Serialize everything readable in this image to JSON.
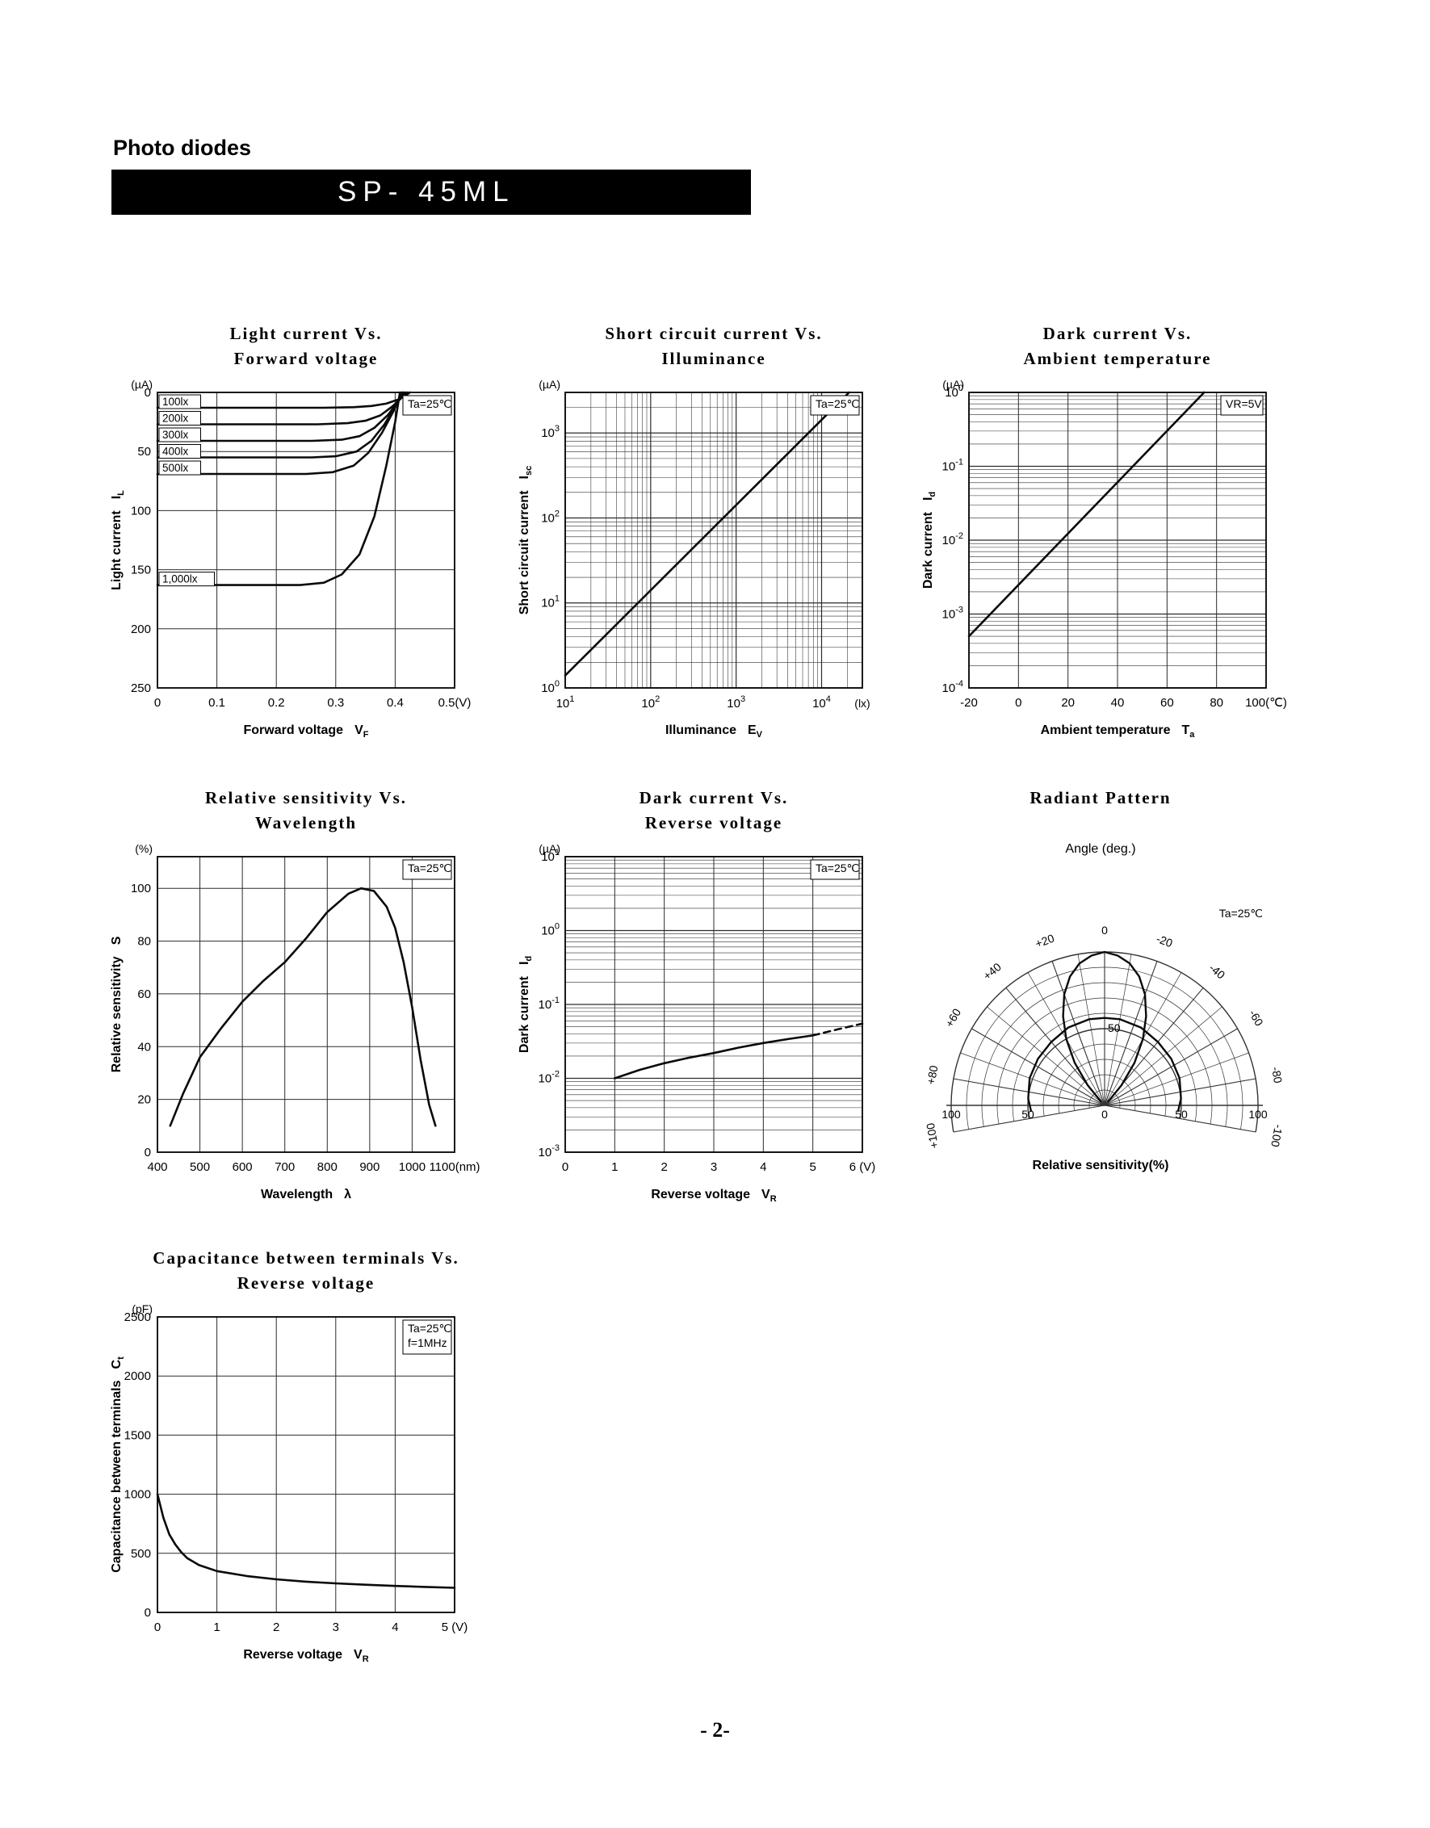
{
  "page": {
    "section_label": "Photo diodes",
    "part_number": "SP- 45ML",
    "footer": "- 2-"
  },
  "chart_data": [
    {
      "id": "light-current-vs-forward-voltage",
      "type": "line",
      "render": "xy",
      "title_lines": [
        "Light current Vs.",
        "Forward voltage"
      ],
      "annotations": [
        {
          "lines": [
            "Ta=25℃"
          ],
          "box": true
        }
      ],
      "x": {
        "label": "Forward voltage",
        "sym": "V",
        "sub": "F",
        "scale": "linear",
        "min": 0,
        "max": 0.5,
        "ticks": [
          0,
          0.1,
          0.2,
          0.3,
          0.4,
          0.5
        ],
        "tick_labels": [
          "0",
          "0.1",
          "0.2",
          "0.3",
          "0.4",
          "0.5(V)"
        ]
      },
      "y": {
        "label": "Light current",
        "sym": "I",
        "sub": "L",
        "unit": "(µA)",
        "scale": "linear",
        "min": 0,
        "max": 250,
        "inverted": true,
        "ticks": [
          0,
          50,
          100,
          150,
          200,
          250
        ],
        "tick_labels": [
          "0",
          "50",
          "100",
          "150",
          "200",
          "250"
        ]
      },
      "series": [
        {
          "name": "100lx",
          "label_box": true,
          "level": 13,
          "points": [
            [
              0,
              13
            ],
            [
              0.28,
              13
            ],
            [
              0.33,
              12.5
            ],
            [
              0.36,
              11.5
            ],
            [
              0.385,
              9.5
            ],
            [
              0.405,
              6
            ],
            [
              0.418,
              2.5
            ],
            [
              0.425,
              0
            ]
          ]
        },
        {
          "name": "200lx",
          "label_box": true,
          "level": 27,
          "points": [
            [
              0,
              27
            ],
            [
              0.27,
              27
            ],
            [
              0.32,
              26
            ],
            [
              0.35,
              24
            ],
            [
              0.375,
              19.5
            ],
            [
              0.395,
              12
            ],
            [
              0.412,
              4
            ],
            [
              0.421,
              0
            ]
          ]
        },
        {
          "name": "300lx",
          "label_box": true,
          "level": 41,
          "points": [
            [
              0,
              41
            ],
            [
              0.26,
              41
            ],
            [
              0.31,
              40
            ],
            [
              0.34,
              37
            ],
            [
              0.365,
              30
            ],
            [
              0.388,
              19
            ],
            [
              0.406,
              7
            ],
            [
              0.417,
              0
            ]
          ]
        },
        {
          "name": "400lx",
          "label_box": true,
          "level": 55,
          "points": [
            [
              0,
              55
            ],
            [
              0.26,
              55
            ],
            [
              0.3,
              54
            ],
            [
              0.335,
              50
            ],
            [
              0.36,
              41
            ],
            [
              0.382,
              27
            ],
            [
              0.401,
              11
            ],
            [
              0.414,
              0
            ]
          ]
        },
        {
          "name": "500lx",
          "label_box": true,
          "level": 69,
          "points": [
            [
              0,
              69
            ],
            [
              0.25,
              69
            ],
            [
              0.295,
              67.5
            ],
            [
              0.33,
              62
            ],
            [
              0.355,
              51
            ],
            [
              0.378,
              34
            ],
            [
              0.398,
              15
            ],
            [
              0.411,
              0
            ]
          ]
        },
        {
          "name": "1,000lx",
          "label_box": true,
          "level": 163,
          "points": [
            [
              0,
              163
            ],
            [
              0.24,
              163
            ],
            [
              0.28,
              161
            ],
            [
              0.31,
              154
            ],
            [
              0.34,
              137
            ],
            [
              0.365,
              105
            ],
            [
              0.385,
              62
            ],
            [
              0.4,
              25
            ],
            [
              0.408,
              0
            ]
          ]
        }
      ]
    },
    {
      "id": "short-circuit-current-vs-illuminance",
      "type": "line",
      "render": "xy",
      "title_lines": [
        "Short circuit current Vs.",
        "Illuminance"
      ],
      "annotations": [
        {
          "lines": [
            "Ta=25℃"
          ],
          "box": true
        }
      ],
      "x": {
        "label": "Illuminance",
        "sym": "E",
        "sub": "V",
        "scale": "log",
        "min": 10,
        "max": 30000,
        "end_label": "(lx)"
      },
      "y": {
        "label": "Short circuit current",
        "sym": "I",
        "sub": "sc",
        "unit": "(µA)",
        "scale": "log",
        "min": 1,
        "max": 3000
      },
      "series": [
        {
          "name": "Isc",
          "points": [
            [
              10,
              1.4
            ],
            [
              21000,
              3000
            ]
          ]
        }
      ]
    },
    {
      "id": "dark-current-vs-ambient-temperature",
      "type": "line",
      "render": "xy",
      "title_lines": [
        "Dark current Vs.",
        "Ambient temperature"
      ],
      "annotations": [
        {
          "lines": [
            "VR=5V"
          ],
          "box": true
        }
      ],
      "x": {
        "label": "Ambient temperature",
        "sym": "T",
        "sub": "a",
        "scale": "linear",
        "min": -20,
        "max": 100,
        "ticks": [
          -20,
          0,
          20,
          40,
          60,
          80,
          100
        ],
        "tick_labels": [
          "-20",
          "0",
          "20",
          "40",
          "60",
          "80",
          "100(℃)"
        ]
      },
      "y": {
        "label": "Dark current",
        "sym": "I",
        "sub": "d",
        "unit": "(µA)",
        "scale": "log",
        "min": 0.0001,
        "max": 1
      },
      "series": [
        {
          "name": "Id",
          "points": [
            [
              -20,
              0.0005
            ],
            [
              75,
              1.0
            ]
          ]
        }
      ]
    },
    {
      "id": "relative-sensitivity-vs-wavelength",
      "type": "line",
      "render": "xy",
      "title_lines": [
        "Relative sensitivity Vs.",
        "Wavelength"
      ],
      "annotations": [
        {
          "lines": [
            "Ta=25℃"
          ],
          "box": true
        }
      ],
      "x": {
        "label": "Wavelength",
        "sym": "λ",
        "sub": "",
        "scale": "linear",
        "min": 400,
        "max": 1100,
        "ticks": [
          400,
          500,
          600,
          700,
          800,
          900,
          1000,
          1100
        ],
        "tick_labels": [
          "400",
          "500",
          "600",
          "700",
          "800",
          "900",
          "1000",
          "1100(nm)"
        ]
      },
      "y": {
        "label": "Relative sensitivity",
        "sym": "S",
        "sub": "",
        "unit": "(%)",
        "scale": "linear",
        "min": 0,
        "max": 112,
        "ticks": [
          0,
          20,
          40,
          60,
          80,
          100
        ],
        "tick_labels": [
          "0",
          "20",
          "40",
          "60",
          "80",
          "100"
        ]
      },
      "series": [
        {
          "name": "S",
          "points": [
            [
              430,
              10
            ],
            [
              460,
              22
            ],
            [
              500,
              36
            ],
            [
              550,
              47
            ],
            [
              600,
              57
            ],
            [
              650,
              65
            ],
            [
              700,
              72
            ],
            [
              750,
              81
            ],
            [
              800,
              91
            ],
            [
              850,
              98
            ],
            [
              880,
              100
            ],
            [
              910,
              99
            ],
            [
              940,
              93
            ],
            [
              960,
              85
            ],
            [
              980,
              72
            ],
            [
              1000,
              55
            ],
            [
              1020,
              35
            ],
            [
              1040,
              18
            ],
            [
              1055,
              10
            ]
          ]
        }
      ]
    },
    {
      "id": "dark-current-vs-reverse-voltage",
      "type": "line",
      "render": "xy",
      "title_lines": [
        "Dark current Vs.",
        "Reverse voltage"
      ],
      "annotations": [
        {
          "lines": [
            "Ta=25℃"
          ],
          "box": true
        }
      ],
      "x": {
        "label": "Reverse voltage",
        "sym": "V",
        "sub": "R",
        "scale": "linear",
        "min": 0,
        "max": 6,
        "ticks": [
          0,
          1,
          2,
          3,
          4,
          5,
          6
        ],
        "tick_labels": [
          "0",
          "1",
          "2",
          "3",
          "4",
          "5",
          "6 (V)"
        ]
      },
      "y": {
        "label": "Dark current",
        "sym": "I",
        "sub": "d",
        "unit": "(µA)",
        "scale": "log",
        "min": 0.001,
        "max": 10
      },
      "series": [
        {
          "name": "Id",
          "points": [
            [
              1,
              0.01
            ],
            [
              1.5,
              0.013
            ],
            [
              2,
              0.016
            ],
            [
              2.5,
              0.019
            ],
            [
              3,
              0.022
            ],
            [
              3.5,
              0.026
            ],
            [
              4,
              0.03
            ],
            [
              4.5,
              0.034
            ],
            [
              5,
              0.038
            ]
          ]
        },
        {
          "name": "Id-extrapolated",
          "dash": true,
          "points": [
            [
              5,
              0.038
            ],
            [
              5.5,
              0.046
            ],
            [
              6,
              0.055
            ]
          ]
        }
      ]
    },
    {
      "id": "radiant-pattern",
      "type": "line",
      "render": "polar",
      "title_lines": [
        "Radiant Pattern"
      ],
      "top_label": "Angle (deg.)",
      "bottom_label": "Relative sensitivity(%)",
      "annotation": "Ta=25℃",
      "angle_labels": [
        {
          "a": 0,
          "t": "0"
        },
        {
          "a": -20,
          "t": "-20"
        },
        {
          "a": -40,
          "t": "-40"
        },
        {
          "a": -60,
          "t": "-60"
        },
        {
          "a": -80,
          "t": "-80"
        },
        {
          "a": -100,
          "t": "-100"
        },
        {
          "a": 20,
          "t": "+20"
        },
        {
          "a": 40,
          "t": "+40"
        },
        {
          "a": 60,
          "t": "+60"
        },
        {
          "a": 80,
          "t": "+80"
        },
        {
          "a": 100,
          "t": "+100"
        }
      ],
      "r_axis": {
        "origin": "0",
        "mid": "50",
        "end": "100",
        "v_mid": "50"
      },
      "series": [
        {
          "name": "main-lobe",
          "points": [
            [
              -44,
              3
            ],
            [
              -40,
              17
            ],
            [
              -35,
              34
            ],
            [
              -30,
              50
            ],
            [
              -25,
              64
            ],
            [
              -20,
              77
            ],
            [
              -15,
              87
            ],
            [
              -10,
              94
            ],
            [
              -5,
              98
            ],
            [
              0,
              100
            ],
            [
              5,
              98
            ],
            [
              10,
              94
            ],
            [
              15,
              87
            ],
            [
              20,
              77
            ],
            [
              25,
              64
            ],
            [
              30,
              50
            ],
            [
              35,
              34
            ],
            [
              40,
              17
            ],
            [
              44,
              3
            ]
          ]
        },
        {
          "name": "broad-lobe",
          "points": [
            [
              -95,
              48
            ],
            [
              -85,
              50
            ],
            [
              -70,
              52
            ],
            [
              -55,
              53
            ],
            [
              -40,
              54
            ],
            [
              -25,
              56
            ],
            [
              -10,
              57
            ],
            [
              0,
              57
            ],
            [
              10,
              57
            ],
            [
              25,
              56
            ],
            [
              40,
              54
            ],
            [
              55,
              53
            ],
            [
              70,
              52
            ],
            [
              85,
              50
            ],
            [
              95,
              48
            ]
          ]
        }
      ]
    },
    {
      "id": "capacitance-between-terminals-vs-reverse-voltage",
      "type": "line",
      "render": "xy",
      "title_lines": [
        "Capacitance between terminals Vs.",
        "Reverse voltage"
      ],
      "annotations": [
        {
          "lines": [
            "Ta=25℃",
            "f=1MHz"
          ],
          "box": true
        }
      ],
      "x": {
        "label": "Reverse voltage",
        "sym": "V",
        "sub": "R",
        "scale": "linear",
        "min": 0,
        "max": 5,
        "ticks": [
          0,
          1,
          2,
          3,
          4,
          5
        ],
        "tick_labels": [
          "0",
          "1",
          "2",
          "3",
          "4",
          "5 (V)"
        ]
      },
      "y": {
        "label": "Capacitance between terminals",
        "sym": "C",
        "sub": "t",
        "unit": "(pF)",
        "scale": "linear",
        "min": 0,
        "max": 2500,
        "ticks": [
          0,
          500,
          1000,
          1500,
          2000,
          2500
        ],
        "tick_labels": [
          "0",
          "500",
          "1000",
          "1500",
          "2000",
          "2500"
        ]
      },
      "series": [
        {
          "name": "Ct",
          "points": [
            [
              0,
              1000
            ],
            [
              0.05,
              900
            ],
            [
              0.1,
              800
            ],
            [
              0.2,
              660
            ],
            [
              0.3,
              575
            ],
            [
              0.4,
              510
            ],
            [
              0.5,
              460
            ],
            [
              0.7,
              400
            ],
            [
              1,
              350
            ],
            [
              1.5,
              308
            ],
            [
              2,
              280
            ],
            [
              2.5,
              260
            ],
            [
              3,
              246
            ],
            [
              3.5,
              234
            ],
            [
              4,
              224
            ],
            [
              4.5,
              216
            ],
            [
              5,
              208
            ]
          ]
        }
      ]
    }
  ]
}
